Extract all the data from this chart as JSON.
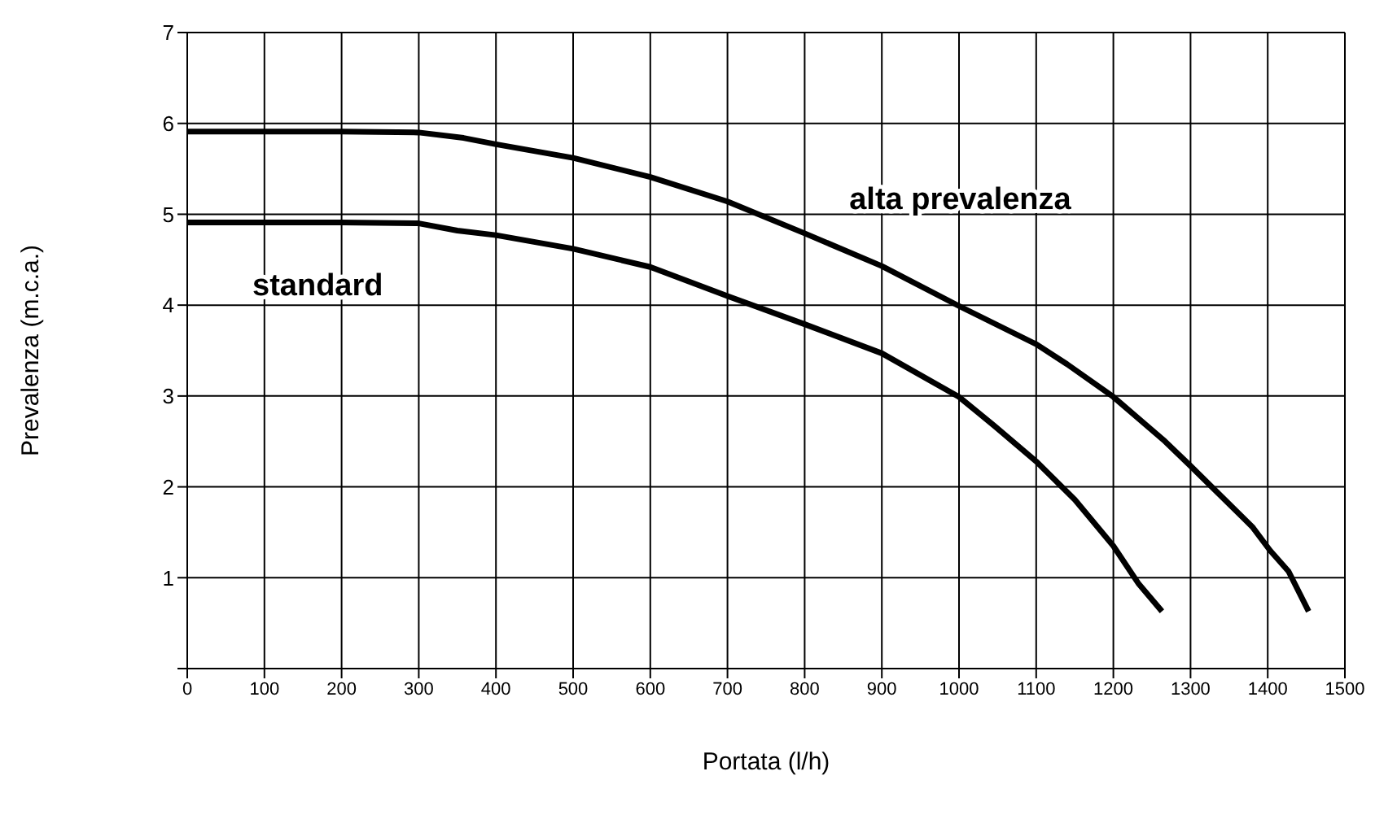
{
  "chart_data": {
    "type": "line",
    "xlabel": "Portata (l/h)",
    "ylabel": "Prevalenza (m.c.a.)",
    "xlim": [
      0,
      1500
    ],
    "xticks": [
      0,
      100,
      200,
      300,
      400,
      500,
      600,
      700,
      800,
      900,
      1000,
      1100,
      1200,
      1300,
      1400,
      1500
    ],
    "ylim": [
      0,
      7
    ],
    "yticks": [
      {
        "value": 0,
        "label": null
      },
      1,
      2,
      3,
      4,
      5,
      6,
      7
    ],
    "grid": true,
    "legend": false,
    "marker": "none",
    "line_style": "solid",
    "series": [
      {
        "name": "alta prevalenza",
        "color": "#000000",
        "x": [
          0,
          200,
          300,
          358,
          400,
          500,
          600,
          700,
          800,
          900,
          1000,
          1100,
          1140,
          1200,
          1267,
          1300,
          1380,
          1403,
          1427,
          1453
        ],
        "values": [
          5.91,
          5.91,
          5.9,
          5.84,
          5.77,
          5.62,
          5.41,
          5.14,
          4.79,
          4.43,
          3.99,
          3.57,
          3.35,
          2.99,
          2.5,
          2.23,
          1.56,
          1.3,
          1.07,
          0.63
        ]
      },
      {
        "name": "standard",
        "color": "#000000",
        "x": [
          0,
          200,
          300,
          350,
          400,
          500,
          600,
          700,
          800,
          900,
          1000,
          1046,
          1100,
          1150,
          1200,
          1233,
          1263
        ],
        "values": [
          4.91,
          4.91,
          4.9,
          4.82,
          4.77,
          4.62,
          4.42,
          4.1,
          3.79,
          3.47,
          2.99,
          2.67,
          2.28,
          1.86,
          1.35,
          0.93,
          0.63
        ]
      }
    ]
  }
}
